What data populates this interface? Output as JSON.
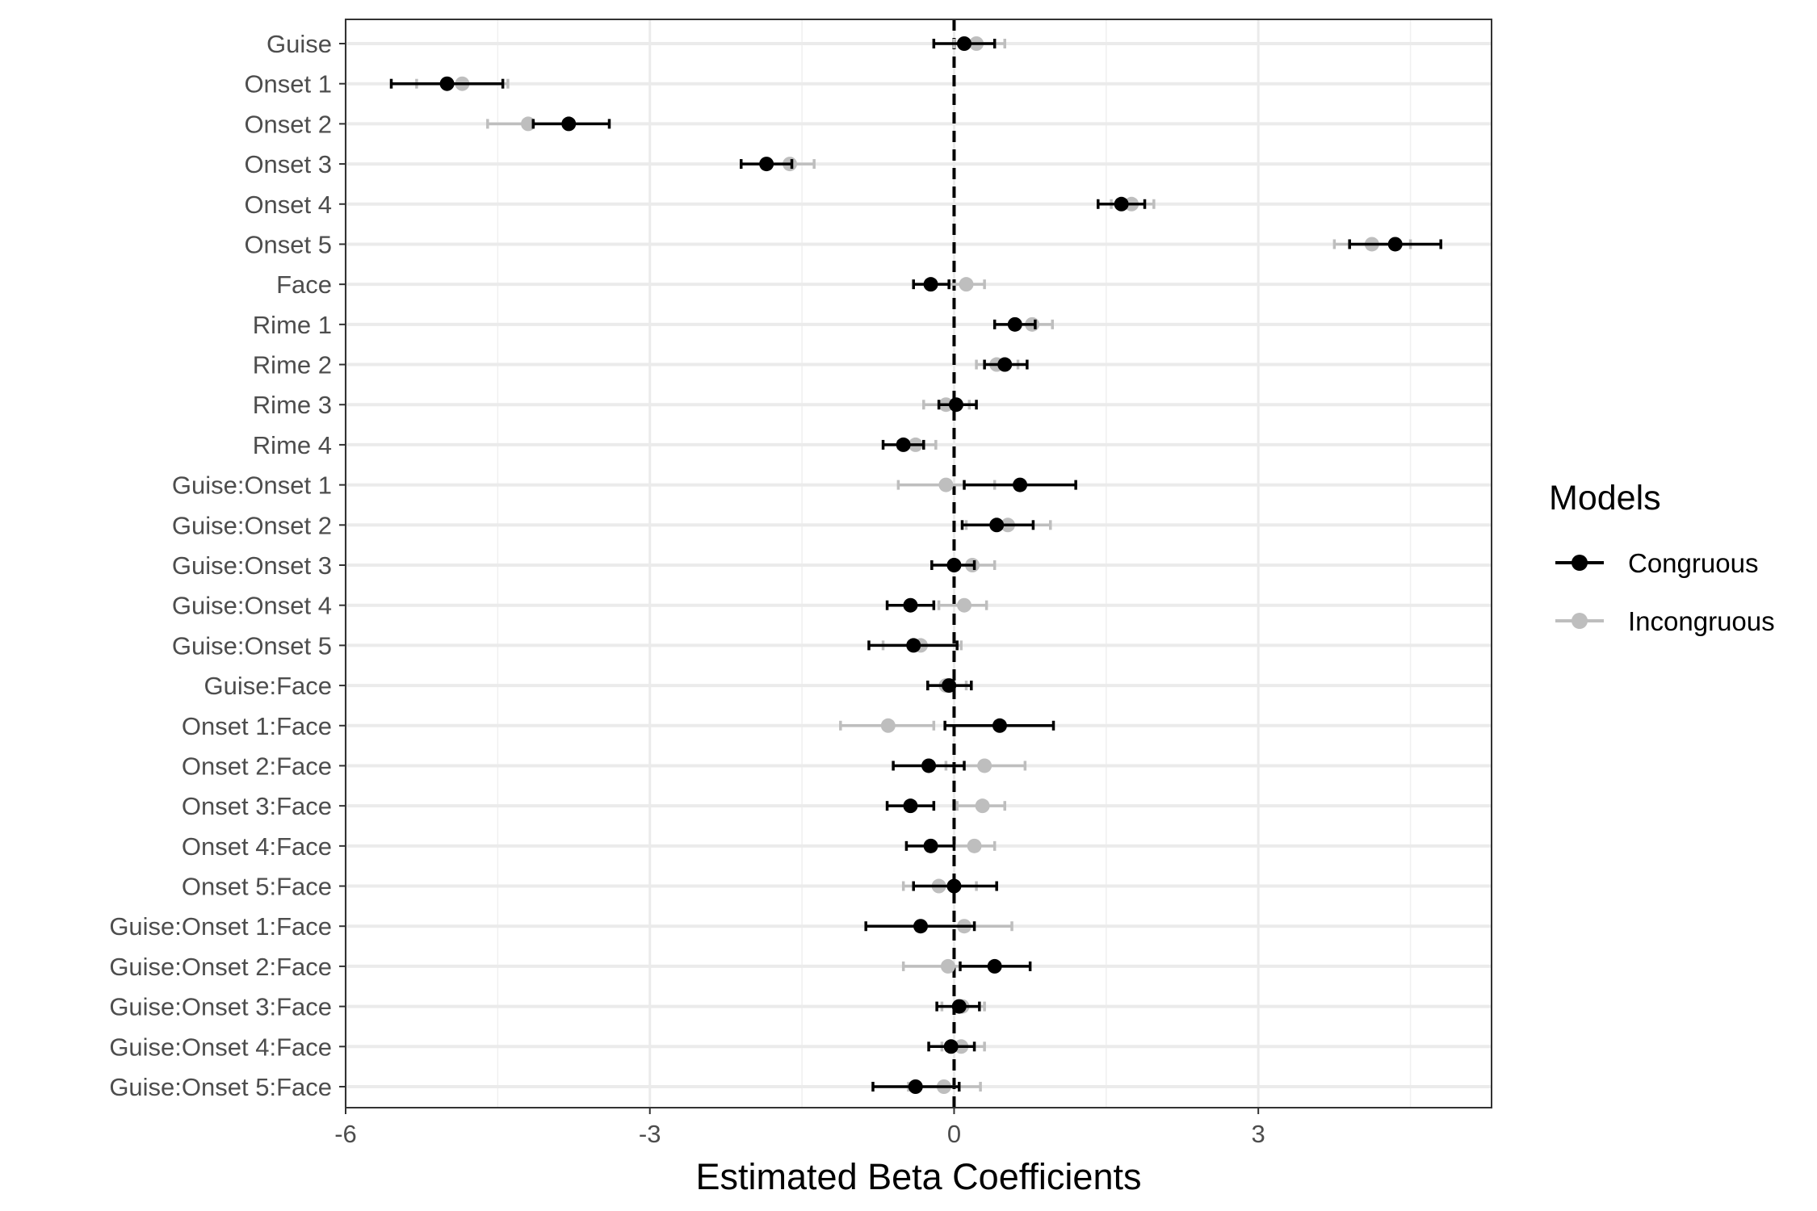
{
  "chart_data": {
    "type": "scatter",
    "subtype": "coefficient-plot-with-error-bars",
    "orientation": "horizontal",
    "xlabel": "Estimated Beta Coefficients",
    "ylabel": "",
    "xlim": [
      -6,
      5.3
    ],
    "xticks": [
      -6,
      -3,
      0,
      3
    ],
    "xtick_labels": [
      "-6",
      "-3",
      "0",
      "3"
    ],
    "grid": true,
    "reference_line": {
      "x": 0,
      "style": "dashed"
    },
    "categories": [
      "Guise",
      "Onset 1",
      "Onset 2",
      "Onset 3",
      "Onset 4",
      "Onset 5",
      "Face",
      "Rime 1",
      "Rime 2",
      "Rime 3",
      "Rime 4",
      "Guise:Onset 1",
      "Guise:Onset 2",
      "Guise:Onset 3",
      "Guise:Onset 4",
      "Guise:Onset 5",
      "Guise:Face",
      "Onset 1:Face",
      "Onset 2:Face",
      "Onset 3:Face",
      "Onset 4:Face",
      "Onset 5:Face",
      "Guise:Onset 1:Face",
      "Guise:Onset 2:Face",
      "Guise:Onset 3:Face",
      "Guise:Onset 4:Face",
      "Guise:Onset 5:Face"
    ],
    "legend": {
      "title": "Models",
      "position": "right"
    },
    "series": [
      {
        "name": "Congruous",
        "color": "#000000",
        "estimate": [
          0.1,
          -5.0,
          -3.8,
          -1.85,
          1.65,
          4.35,
          -0.23,
          0.6,
          0.5,
          0.02,
          -0.5,
          0.65,
          0.42,
          0.0,
          -0.43,
          -0.4,
          -0.05,
          0.45,
          -0.25,
          -0.43,
          -0.23,
          0.0,
          -0.33,
          0.4,
          0.05,
          -0.03,
          -0.38
        ],
        "lower": [
          -0.2,
          -5.55,
          -4.15,
          -2.1,
          1.42,
          3.9,
          -0.4,
          0.4,
          0.3,
          -0.15,
          -0.7,
          0.1,
          0.08,
          -0.22,
          -0.66,
          -0.84,
          -0.26,
          -0.09,
          -0.6,
          -0.66,
          -0.47,
          -0.4,
          -0.87,
          0.06,
          -0.17,
          -0.25,
          -0.8
        ],
        "upper": [
          0.4,
          -4.45,
          -3.4,
          -1.6,
          1.88,
          4.8,
          -0.05,
          0.8,
          0.72,
          0.22,
          -0.3,
          1.2,
          0.78,
          0.2,
          -0.2,
          0.03,
          0.17,
          0.98,
          0.1,
          -0.2,
          0.0,
          0.42,
          0.2,
          0.75,
          0.25,
          0.2,
          0.05
        ]
      },
      {
        "name": "Incongruous",
        "color": "#bebebe",
        "estimate": [
          0.22,
          -4.85,
          -4.2,
          -1.62,
          1.75,
          4.12,
          0.12,
          0.77,
          0.42,
          -0.08,
          -0.38,
          -0.08,
          0.53,
          0.18,
          0.1,
          -0.33,
          -0.08,
          -0.65,
          0.3,
          0.28,
          0.2,
          -0.15,
          0.1,
          -0.06,
          0.08,
          0.07,
          -0.1
        ],
        "lower": [
          0.0,
          -5.3,
          -4.6,
          -1.85,
          1.55,
          3.75,
          -0.05,
          0.58,
          0.22,
          -0.3,
          -0.55,
          -0.55,
          0.12,
          -0.02,
          -0.15,
          -0.7,
          -0.26,
          -1.12,
          -0.08,
          0.03,
          0.0,
          -0.5,
          -0.35,
          -0.5,
          -0.12,
          -0.12,
          -0.45
        ],
        "upper": [
          0.5,
          -4.4,
          -3.8,
          -1.38,
          1.97,
          4.5,
          0.3,
          0.97,
          0.63,
          0.15,
          -0.18,
          0.4,
          0.95,
          0.4,
          0.32,
          0.07,
          0.12,
          -0.2,
          0.7,
          0.5,
          0.4,
          0.22,
          0.57,
          0.4,
          0.3,
          0.3,
          0.26
        ]
      }
    ]
  }
}
